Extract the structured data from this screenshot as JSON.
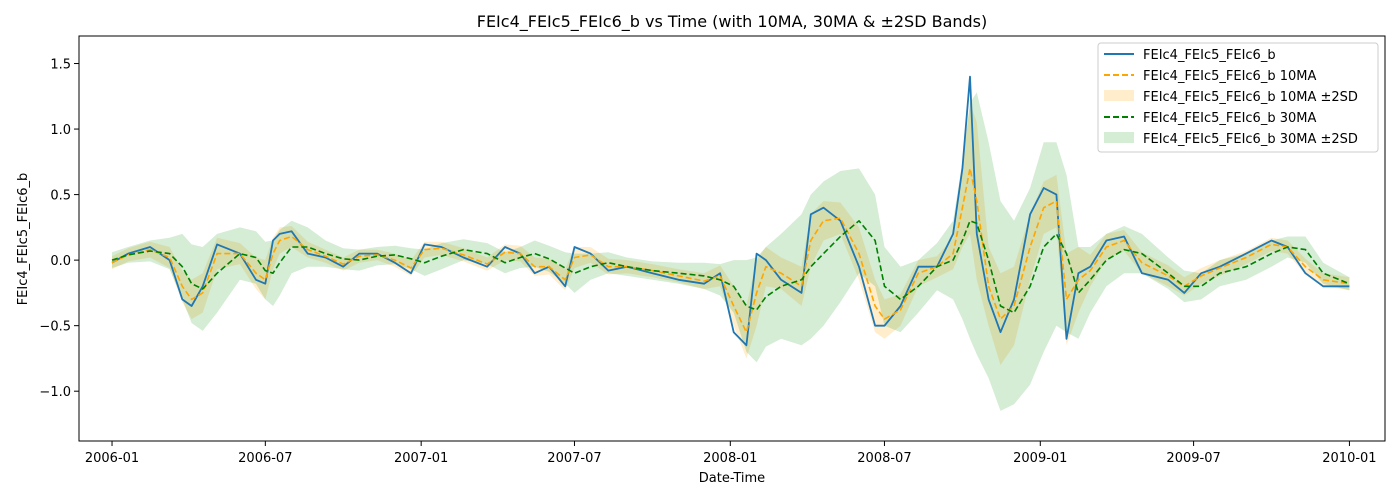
{
  "chart_data": {
    "type": "line",
    "title": "FEIc4_FEIc5_FEIc6_b vs Time (with 10MA, 30MA & ±2SD Bands)",
    "xlabel": "Date-Time",
    "ylabel": "FEIc4_FEIc5_FEIc6_b",
    "xlim": [
      "2005-11-23",
      "2010-02-12"
    ],
    "ylim": [
      -1.38,
      1.71
    ],
    "x_ticks": [
      "2006-01",
      "2006-07",
      "2007-01",
      "2007-07",
      "2008-01",
      "2008-07",
      "2009-01",
      "2009-07",
      "2010-01"
    ],
    "y_ticks": [
      -1.0,
      -0.5,
      0.0,
      0.5,
      1.0,
      1.5
    ],
    "y_tick_labels": [
      "−1.0",
      "−0.5",
      "0.0",
      "0.5",
      "1.0",
      "1.5"
    ],
    "grid": false,
    "legend_position": "top-right",
    "colors": {
      "raw": "#1f77b4",
      "ma10": "#ffa500",
      "ma10_band": "#ffa500",
      "ma30": "#008000",
      "ma30_band": "#2ca02c"
    },
    "x": [
      "2006-01-01",
      "2006-01-20",
      "2006-02-15",
      "2006-03-10",
      "2006-03-25",
      "2006-04-05",
      "2006-04-18",
      "2006-05-05",
      "2006-06-01",
      "2006-06-20",
      "2006-07-01",
      "2006-07-10",
      "2006-07-18",
      "2006-08-01",
      "2006-08-20",
      "2006-09-10",
      "2006-10-01",
      "2006-10-20",
      "2006-11-10",
      "2006-12-01",
      "2006-12-20",
      "2007-01-05",
      "2007-01-25",
      "2007-02-20",
      "2007-03-20",
      "2007-04-10",
      "2007-04-28",
      "2007-05-15",
      "2007-06-01",
      "2007-06-20",
      "2007-07-01",
      "2007-07-20",
      "2007-08-10",
      "2007-09-01",
      "2007-10-01",
      "2007-11-01",
      "2007-12-01",
      "2007-12-20",
      "2008-01-05",
      "2008-01-20",
      "2008-02-01",
      "2008-02-12",
      "2008-03-01",
      "2008-03-25",
      "2008-04-05",
      "2008-04-20",
      "2008-05-10",
      "2008-06-01",
      "2008-06-20",
      "2008-07-01",
      "2008-07-20",
      "2008-08-10",
      "2008-09-01",
      "2008-09-20",
      "2008-10-01",
      "2008-10-10",
      "2008-10-18",
      "2008-11-01",
      "2008-11-15",
      "2008-12-01",
      "2008-12-20",
      "2009-01-05",
      "2009-01-20",
      "2009-02-01",
      "2009-02-15",
      "2009-03-01",
      "2009-03-20",
      "2009-04-10",
      "2009-05-01",
      "2009-06-01",
      "2009-06-20",
      "2009-07-10",
      "2009-08-01",
      "2009-09-01",
      "2009-10-01",
      "2009-10-20",
      "2009-11-10",
      "2009-12-01",
      "2010-01-01"
    ],
    "series": [
      {
        "name": "FEIc4_FEIc5_FEIc6_b",
        "style": "solid",
        "values": [
          -0.02,
          0.05,
          0.1,
          0.0,
          -0.3,
          -0.35,
          -0.2,
          0.12,
          0.05,
          -0.15,
          -0.18,
          0.15,
          0.2,
          0.22,
          0.05,
          0.02,
          -0.05,
          0.05,
          0.05,
          -0.02,
          -0.1,
          0.12,
          0.1,
          0.02,
          -0.05,
          0.1,
          0.05,
          -0.1,
          -0.05,
          -0.2,
          0.1,
          0.05,
          -0.08,
          -0.05,
          -0.1,
          -0.15,
          -0.18,
          -0.1,
          -0.55,
          -0.65,
          0.05,
          0.0,
          -0.15,
          -0.25,
          0.35,
          0.4,
          0.3,
          -0.05,
          -0.5,
          -0.5,
          -0.35,
          -0.05,
          -0.05,
          0.2,
          0.7,
          1.4,
          0.2,
          -0.3,
          -0.55,
          -0.3,
          0.35,
          0.55,
          0.5,
          -0.6,
          -0.1,
          -0.05,
          0.15,
          0.18,
          -0.1,
          -0.15,
          -0.25,
          -0.1,
          -0.05,
          0.05,
          0.15,
          0.1,
          -0.1,
          -0.2,
          -0.2
        ]
      },
      {
        "name": "FEIc4_FEIc5_FEIc6_b 10MA",
        "style": "dashed",
        "values": [
          -0.02,
          0.04,
          0.08,
          0.02,
          -0.2,
          -0.3,
          -0.25,
          0.05,
          0.05,
          -0.1,
          -0.15,
          0.05,
          0.15,
          0.18,
          0.08,
          0.03,
          -0.03,
          0.03,
          0.04,
          0.0,
          -0.06,
          0.08,
          0.09,
          0.04,
          -0.03,
          0.06,
          0.05,
          -0.05,
          -0.05,
          -0.15,
          0.02,
          0.04,
          -0.05,
          -0.05,
          -0.08,
          -0.12,
          -0.16,
          -0.12,
          -0.35,
          -0.55,
          -0.25,
          -0.05,
          -0.1,
          -0.2,
          0.15,
          0.3,
          0.32,
          0.05,
          -0.35,
          -0.45,
          -0.38,
          -0.1,
          -0.05,
          0.05,
          0.4,
          0.7,
          0.45,
          -0.2,
          -0.45,
          -0.35,
          0.1,
          0.4,
          0.45,
          -0.3,
          -0.15,
          -0.08,
          0.1,
          0.15,
          -0.02,
          -0.12,
          -0.2,
          -0.12,
          -0.06,
          0.02,
          0.12,
          0.1,
          -0.05,
          -0.15,
          -0.18
        ]
      },
      {
        "name": "FEIc4_FEIc5_FEIc6_b 30MA",
        "style": "dashed",
        "values": [
          0.0,
          0.04,
          0.07,
          0.05,
          -0.05,
          -0.18,
          -0.22,
          -0.1,
          0.05,
          0.02,
          -0.08,
          -0.1,
          -0.02,
          0.1,
          0.1,
          0.05,
          0.01,
          0.0,
          0.03,
          0.04,
          0.01,
          -0.02,
          0.03,
          0.08,
          0.05,
          -0.02,
          0.02,
          0.05,
          0.01,
          -0.06,
          -0.1,
          -0.05,
          -0.02,
          -0.05,
          -0.08,
          -0.1,
          -0.12,
          -0.15,
          -0.2,
          -0.35,
          -0.38,
          -0.28,
          -0.2,
          -0.15,
          -0.05,
          0.05,
          0.18,
          0.3,
          0.15,
          -0.2,
          -0.3,
          -0.2,
          -0.05,
          0.0,
          0.15,
          0.3,
          0.28,
          0.0,
          -0.35,
          -0.4,
          -0.2,
          0.1,
          0.2,
          0.05,
          -0.25,
          -0.15,
          0.0,
          0.08,
          0.05,
          -0.1,
          -0.2,
          -0.2,
          -0.1,
          -0.05,
          0.05,
          0.1,
          0.08,
          -0.1,
          -0.18
        ]
      }
    ],
    "bands": [
      {
        "name": "FEIc4_FEIc5_FEIc6_b 10MA ±2SD",
        "center_series": "FEIc4_FEIc5_FEIc6_b 10MA",
        "sd2": [
          0.05,
          0.05,
          0.06,
          0.08,
          0.12,
          0.15,
          0.15,
          0.12,
          0.08,
          0.12,
          0.15,
          0.12,
          0.1,
          0.08,
          0.06,
          0.05,
          0.05,
          0.05,
          0.04,
          0.05,
          0.06,
          0.06,
          0.05,
          0.05,
          0.05,
          0.06,
          0.06,
          0.07,
          0.06,
          0.08,
          0.08,
          0.06,
          0.06,
          0.05,
          0.05,
          0.05,
          0.06,
          0.08,
          0.15,
          0.2,
          0.25,
          0.15,
          0.12,
          0.15,
          0.2,
          0.15,
          0.12,
          0.2,
          0.2,
          0.15,
          0.12,
          0.1,
          0.08,
          0.12,
          0.3,
          0.5,
          0.6,
          0.3,
          0.35,
          0.3,
          0.25,
          0.2,
          0.2,
          0.35,
          0.25,
          0.12,
          0.1,
          0.08,
          0.08,
          0.08,
          0.07,
          0.06,
          0.06,
          0.05,
          0.05,
          0.05,
          0.06,
          0.05,
          0.05
        ]
      },
      {
        "name": "FEIc4_FEIc5_FEIc6_b 30MA ±2SD",
        "center_series": "FEIc4_FEIc5_FEIc6_b 30MA",
        "sd2": [
          0.06,
          0.06,
          0.08,
          0.12,
          0.25,
          0.3,
          0.32,
          0.3,
          0.2,
          0.2,
          0.22,
          0.25,
          0.25,
          0.2,
          0.15,
          0.1,
          0.08,
          0.08,
          0.07,
          0.07,
          0.08,
          0.1,
          0.1,
          0.08,
          0.08,
          0.08,
          0.08,
          0.1,
          0.1,
          0.12,
          0.15,
          0.1,
          0.08,
          0.07,
          0.07,
          0.08,
          0.1,
          0.12,
          0.2,
          0.35,
          0.4,
          0.38,
          0.4,
          0.5,
          0.55,
          0.55,
          0.5,
          0.4,
          0.35,
          0.3,
          0.25,
          0.2,
          0.18,
          0.3,
          0.6,
          0.9,
          1.0,
          0.9,
          0.8,
          0.7,
          0.75,
          0.8,
          0.7,
          0.6,
          0.35,
          0.25,
          0.2,
          0.18,
          0.15,
          0.12,
          0.12,
          0.1,
          0.1,
          0.1,
          0.1,
          0.08,
          0.1,
          0.08,
          0.05
        ]
      }
    ]
  }
}
